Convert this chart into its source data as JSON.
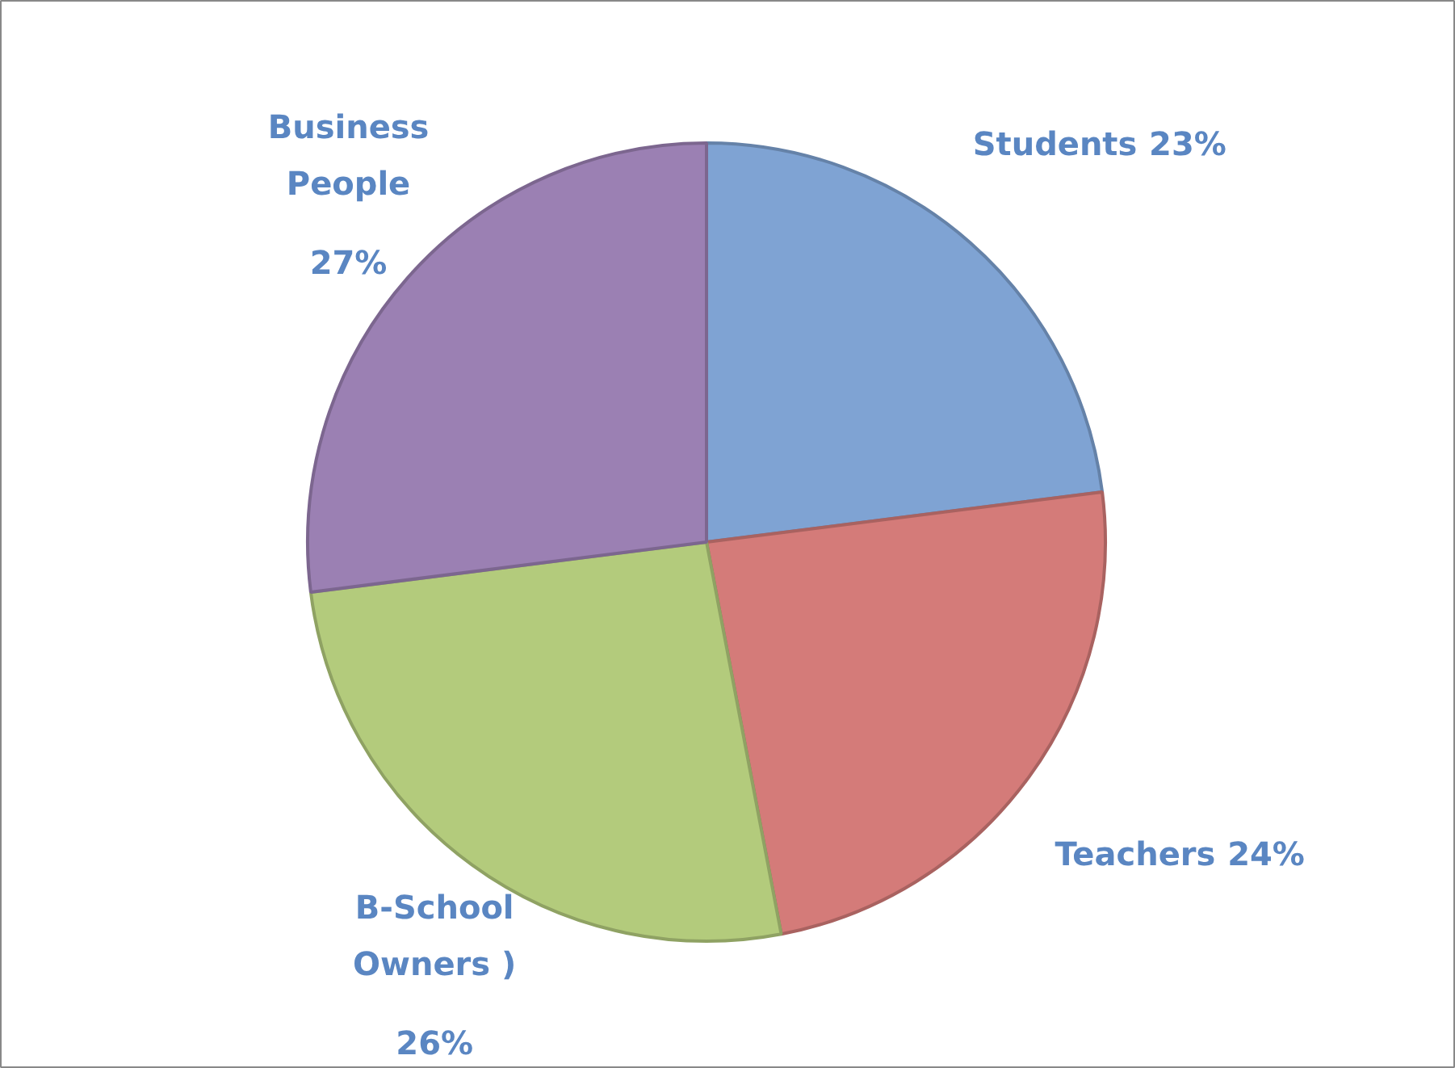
{
  "chart_data": {
    "type": "pie",
    "categories": [
      "Students",
      "Teachers",
      "B-School Owners )",
      "Business People"
    ],
    "values": [
      23,
      24,
      26,
      27
    ],
    "colors": [
      "#7fa3d3",
      "#d47b79",
      "#b3cb7c",
      "#9b80b3"
    ],
    "value_labels": [
      "23%",
      "24%",
      "26%",
      "27%"
    ]
  }
}
